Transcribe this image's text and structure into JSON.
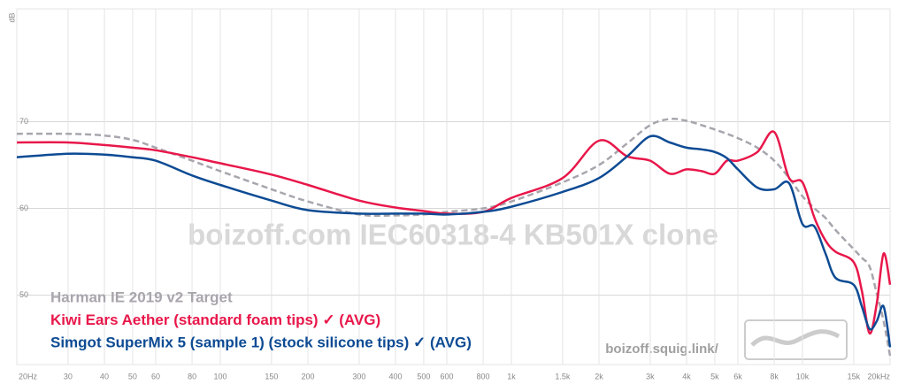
{
  "chart_data": {
    "type": "line",
    "y_label": "dB",
    "watermark": "boizoff.com IEC60318-4 KB501X clone",
    "site": "boizoff.squig.link/",
    "log_x": true,
    "grid": true,
    "x": [
      20,
      30,
      40,
      50,
      60,
      80,
      100,
      150,
      200,
      300,
      400,
      500,
      600,
      800,
      1000,
      1500,
      2000,
      2500,
      3000,
      3500,
      4000,
      4500,
      5000,
      5500,
      6000,
      7000,
      8000,
      9000,
      10000,
      11000,
      12000,
      13000,
      15000,
      16000,
      17000,
      18000,
      19000,
      20000
    ],
    "xlim": [
      20,
      20000
    ],
    "xticks": [
      {
        "value": 20,
        "label": "20Hz"
      },
      30,
      40,
      50,
      60,
      80,
      100,
      150,
      200,
      300,
      400,
      500,
      600,
      800,
      {
        "value": 1000,
        "label": "1k"
      },
      {
        "value": 1500,
        "label": "1.5k"
      },
      {
        "value": 2000,
        "label": "2k"
      },
      {
        "value": 3000,
        "label": "3k"
      },
      {
        "value": 4000,
        "label": "4k"
      },
      {
        "value": 5000,
        "label": "5k"
      },
      {
        "value": 6000,
        "label": "6k"
      },
      {
        "value": 8000,
        "label": "8k"
      },
      {
        "value": 10000,
        "label": "10k"
      },
      {
        "value": 15000,
        "label": "15k"
      },
      {
        "value": 20000,
        "label": "20kHz"
      }
    ],
    "ylim": [
      42,
      83
    ],
    "yticks": [
      50,
      60,
      70
    ],
    "series": [
      {
        "name": "Harman IE 2019 v2 Target",
        "color": "#a9a5ad",
        "line_style": "dashed",
        "values": [
          68.6,
          68.6,
          68.4,
          67.9,
          67.0,
          65.5,
          64.3,
          62.2,
          60.8,
          59.3,
          59.2,
          59.3,
          59.6,
          60.0,
          60.8,
          63.0,
          65.0,
          67.5,
          69.6,
          70.3,
          70.1,
          69.6,
          69.1,
          68.6,
          68.1,
          67.0,
          65.5,
          63.5,
          61.4,
          60.0,
          58.9,
          57.5,
          55.3,
          54.3,
          53.3,
          50.2,
          47.0,
          43.0
        ]
      },
      {
        "name": "Kiwi Ears Aether (standard foam tips) ✓ (AVG)",
        "color": "#e8174a",
        "line_style": "solid",
        "values": [
          67.6,
          67.6,
          67.3,
          67.0,
          66.7,
          65.9,
          65.2,
          63.9,
          62.7,
          60.9,
          60.1,
          59.7,
          59.4,
          59.6,
          61.2,
          63.5,
          67.8,
          66.0,
          65.5,
          64.0,
          64.5,
          64.3,
          64.0,
          65.5,
          65.5,
          66.5,
          68.8,
          63.5,
          63.0,
          58.9,
          56.3,
          55.0,
          53.8,
          50.5,
          45.6,
          49.0,
          54.8,
          51.2
        ]
      },
      {
        "name": "Simgot SuperMix 5 (sample 1) (stock silicone tips) ✓ (AVG)",
        "color": "#0d4b94",
        "line_style": "solid",
        "values": [
          65.9,
          66.3,
          66.2,
          65.9,
          65.5,
          63.8,
          62.7,
          60.9,
          59.8,
          59.4,
          59.4,
          59.4,
          59.3,
          59.6,
          60.2,
          61.9,
          63.5,
          66.0,
          68.3,
          67.6,
          67.0,
          66.8,
          66.5,
          65.8,
          64.5,
          62.4,
          62.2,
          62.9,
          58.2,
          57.9,
          54.8,
          52.0,
          51.2,
          48.7,
          46.1,
          47.0,
          48.7,
          44.0
        ]
      }
    ]
  }
}
